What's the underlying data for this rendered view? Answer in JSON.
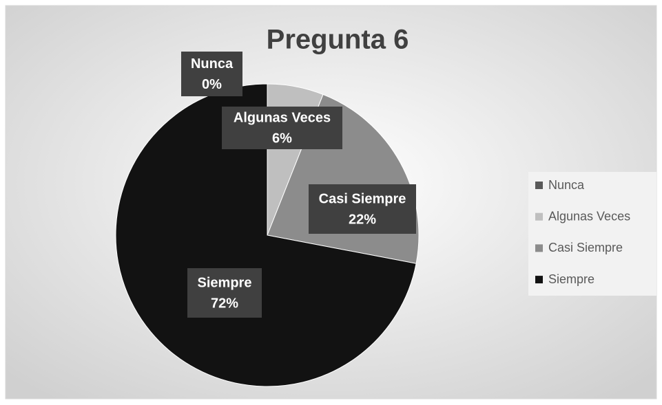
{
  "chart_data": {
    "type": "pie",
    "title": "Pregunta 6",
    "categories": [
      "Nunca",
      "Algunas Veces",
      "Casi Siempre",
      "Siempre"
    ],
    "values": [
      0,
      6,
      22,
      72
    ],
    "value_labels": [
      "0%",
      "6%",
      "22%",
      "72%"
    ],
    "colors": [
      "#595959",
      "#bfbfbf",
      "#8c8c8c",
      "#121212"
    ],
    "legend": "right"
  }
}
